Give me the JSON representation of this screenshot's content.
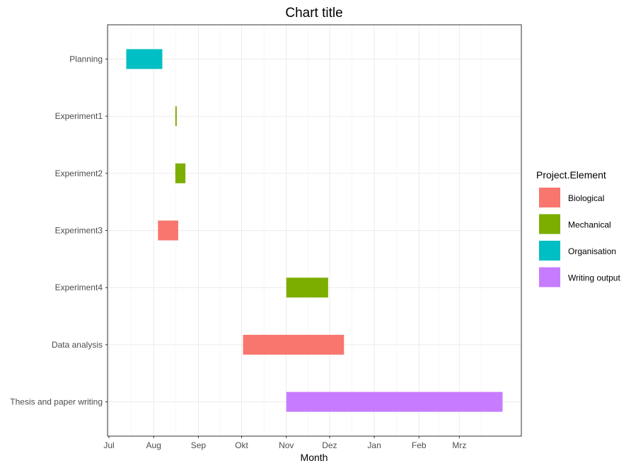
{
  "chart_data": {
    "type": "bar",
    "orientation": "horizontal-gantt",
    "title": "Chart title",
    "xlabel": "Month",
    "ylabel": "",
    "x_ticks": [
      "Jul",
      "Aug",
      "Sep",
      "Okt",
      "Nov",
      "Dez",
      "Jan",
      "Feb",
      "Mrz"
    ],
    "categories": [
      "Planning",
      "Experiment1",
      "Experiment2",
      "Experiment3",
      "Experiment4",
      "Data analysis",
      "Thesis and paper writing"
    ],
    "tasks": [
      {
        "name": "Planning",
        "start": "2021-07-13",
        "end": "2021-08-07",
        "element": "Organisation"
      },
      {
        "name": "Experiment1",
        "start": "2021-08-16",
        "end": "2021-08-17",
        "element": "Mechanical"
      },
      {
        "name": "Experiment2",
        "start": "2021-08-16",
        "end": "2021-08-23",
        "element": "Mechanical"
      },
      {
        "name": "Experiment3",
        "start": "2021-08-04",
        "end": "2021-08-18",
        "element": "Biological"
      },
      {
        "name": "Experiment4",
        "start": "2021-11-01",
        "end": "2021-11-30",
        "element": "Mechanical"
      },
      {
        "name": "Data analysis",
        "start": "2021-10-02",
        "end": "2021-12-11",
        "element": "Biological"
      },
      {
        "name": "Thesis and paper writing",
        "start": "2021-11-01",
        "end": "2022-03-31",
        "element": "Writing output"
      }
    ],
    "legend": {
      "title": "Project.Element",
      "position": "right",
      "entries": [
        {
          "label": "Biological",
          "color": "#F8766D"
        },
        {
          "label": "Mechanical",
          "color": "#7CAE00"
        },
        {
          "label": "Organisation",
          "color": "#00BFC4"
        },
        {
          "label": "Writing output",
          "color": "#C77CFF"
        }
      ]
    },
    "xlim": [
      "2021-06-30",
      "2022-04-13"
    ],
    "grid": true
  }
}
